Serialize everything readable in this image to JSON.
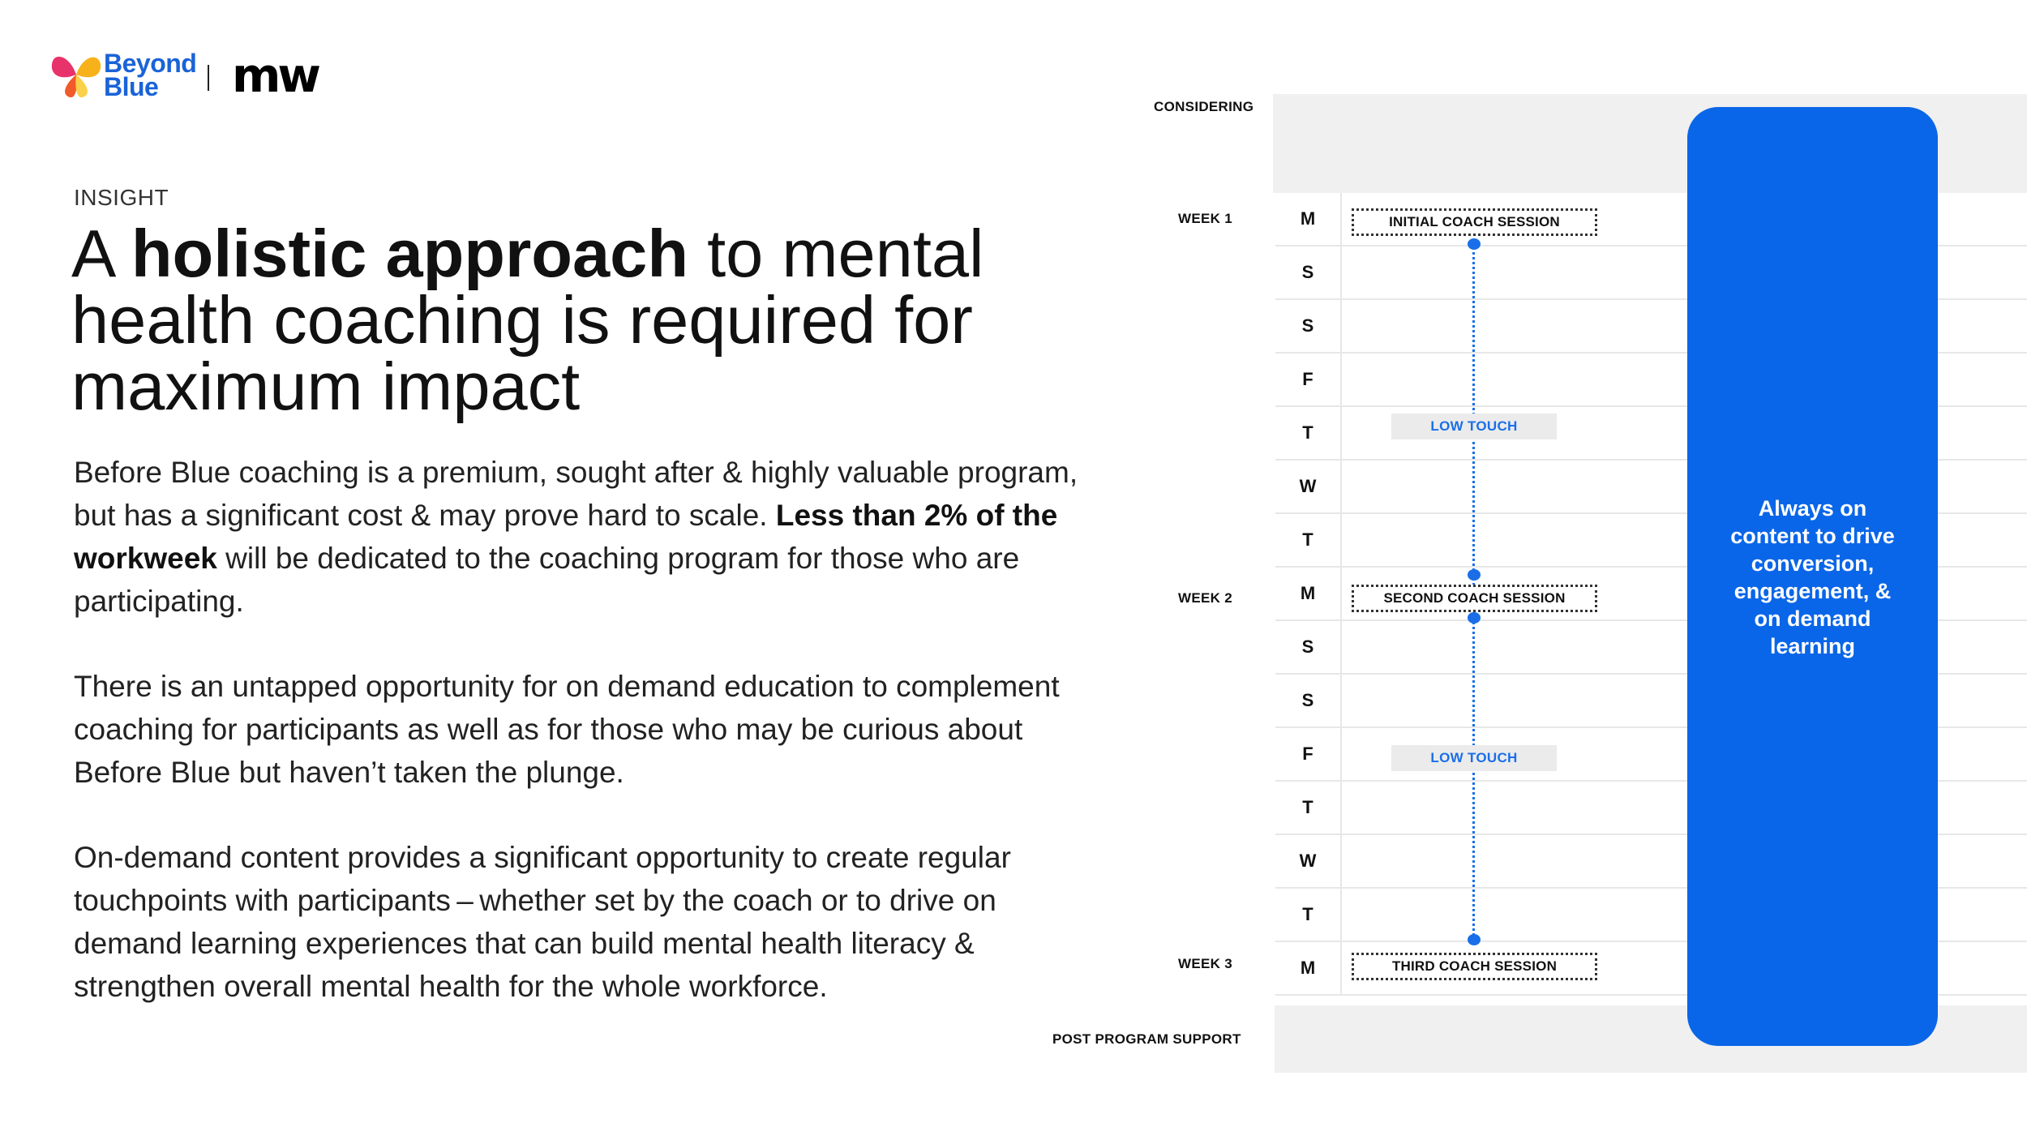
{
  "header": {
    "logo_line1": "Beyond",
    "logo_line2": "Blue",
    "partner_mark": "mw",
    "brand_color": "#1a63d8"
  },
  "insight": {
    "eyebrow": "INSIGHT",
    "headline": {
      "pre": "A ",
      "bold": "holistic approach",
      "post": " to mental health coaching is required for maximum impact"
    },
    "paragraph1": {
      "text_a": "Before Blue coaching is a premium, sought after & highly valuable program, but has a significant cost & may prove hard to scale. ",
      "bold": "Less than 2% of the workweek",
      "text_b": " will be dedicated to the coaching program for those who are participating."
    },
    "paragraph2": "There is an untapped opportunity for on demand education to complement coaching for participants as well as for those who may be curious about Before Blue but haven’t taken the plunge.",
    "paragraph3": "On-demand content provides a significant opportunity to create regular touchpoints with participants – whether set by the coach or to drive on demand learning experiences that can build mental health literacy & strengthen overall mental health for the whole workforce."
  },
  "timeline": {
    "considering_label": "CONSIDERING",
    "post_program_label": "POST PROGRAM SUPPORT",
    "weeks": [
      "WEEK 1",
      "WEEK 2",
      "WEEK 3"
    ],
    "days": [
      "M",
      "S",
      "S",
      "F",
      "T",
      "W",
      "T",
      "M",
      "S",
      "S",
      "F",
      "T",
      "W",
      "T",
      "M"
    ],
    "sessions": [
      "INITIAL COACH SESSION",
      "SECOND COACH SESSION",
      "THIRD COACH SESSION"
    ],
    "touches": [
      "LOW TOUCH",
      "LOW TOUCH"
    ],
    "always_on": [
      "Always on",
      "content  to  drive",
      "conversion,",
      "engagement, &",
      "on demand",
      "learning"
    ],
    "accent_color": "#0a66e8"
  }
}
